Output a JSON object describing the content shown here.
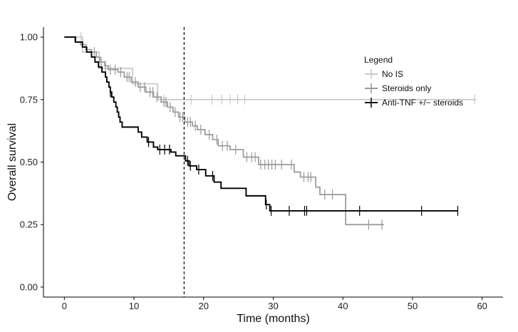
{
  "chart_data": {
    "type": "line",
    "subtype": "kaplan-meier step",
    "xlabel": "Time (months)",
    "ylabel": "Overall survival",
    "xlim": [
      -3,
      63
    ],
    "ylim": [
      -0.04,
      1.04
    ],
    "x_ticks": [
      0,
      10,
      20,
      30,
      40,
      50,
      60
    ],
    "y_ticks": [
      0.0,
      0.25,
      0.5,
      0.75,
      1.0
    ],
    "x_tick_labels": [
      "0",
      "10",
      "20",
      "30",
      "40",
      "50",
      "60"
    ],
    "y_tick_labels": [
      "0.00",
      "0.25",
      "0.50",
      "0.75",
      "1.00"
    ],
    "reference_line_x": 17.2,
    "legend": {
      "title": "Legend",
      "position": "top-right",
      "entries": [
        "No IS",
        "Steroids only",
        "Anti-TNF +/− steroids"
      ]
    },
    "series": [
      {
        "name": "No IS",
        "color": "#c8c8c8",
        "steps": [
          [
            0,
            1.0
          ],
          [
            2.6,
            0.94
          ],
          [
            5.0,
            0.875
          ],
          [
            9.8,
            0.813
          ],
          [
            13.4,
            0.75
          ],
          [
            59.2,
            0.75
          ]
        ],
        "censors": [
          2.4,
          14.3,
          18.2,
          21.2,
          22.6,
          23.8,
          24.9,
          25.9,
          58.9
        ]
      },
      {
        "name": "Steroids only",
        "color": "#999999",
        "steps": [
          [
            0,
            1.0
          ],
          [
            1.5,
            0.98
          ],
          [
            2.3,
            0.97
          ],
          [
            3.1,
            0.95
          ],
          [
            3.9,
            0.94
          ],
          [
            4.6,
            0.92
          ],
          [
            5.1,
            0.9
          ],
          [
            5.8,
            0.885
          ],
          [
            6.3,
            0.87
          ],
          [
            7.7,
            0.86
          ],
          [
            8.6,
            0.84
          ],
          [
            9.6,
            0.82
          ],
          [
            10.6,
            0.8
          ],
          [
            11.7,
            0.78
          ],
          [
            12.8,
            0.76
          ],
          [
            13.9,
            0.74
          ],
          [
            14.8,
            0.72
          ],
          [
            15.6,
            0.7
          ],
          [
            16.4,
            0.68
          ],
          [
            17.3,
            0.66
          ],
          [
            18.4,
            0.645
          ],
          [
            19.1,
            0.63
          ],
          [
            20.2,
            0.61
          ],
          [
            21.3,
            0.59
          ],
          [
            22.1,
            0.565
          ],
          [
            23.8,
            0.55
          ],
          [
            25.7,
            0.52
          ],
          [
            27.9,
            0.49
          ],
          [
            33.0,
            0.46
          ],
          [
            33.9,
            0.44
          ],
          [
            36.1,
            0.4
          ],
          [
            36.7,
            0.37
          ],
          [
            40.4,
            0.25
          ],
          [
            45.9,
            0.25
          ]
        ],
        "censors": [
          4.3,
          5.3,
          5.9,
          6.6,
          7.3,
          8.1,
          9.0,
          9.3,
          10.2,
          10.9,
          11.5,
          12.3,
          12.7,
          13.3,
          14.3,
          14.6,
          15.2,
          15.9,
          16.6,
          17.0,
          17.7,
          18.1,
          18.8,
          19.6,
          20.8,
          21.9,
          22.7,
          23.4,
          24.6,
          26.2,
          26.9,
          27.4,
          28.2,
          28.8,
          29.3,
          29.8,
          30.3,
          31.2,
          32.6,
          34.4,
          35.0,
          35.4,
          37.4,
          38.5,
          43.7,
          45.6
        ]
      },
      {
        "name": "Anti-TNF +/− steroids",
        "color": "#000000",
        "steps": [
          [
            0,
            1.0
          ],
          [
            1.6,
            0.98
          ],
          [
            2.6,
            0.96
          ],
          [
            3.2,
            0.94
          ],
          [
            3.9,
            0.92
          ],
          [
            4.4,
            0.9
          ],
          [
            4.9,
            0.88
          ],
          [
            5.4,
            0.86
          ],
          [
            5.9,
            0.84
          ],
          [
            6.1,
            0.82
          ],
          [
            6.4,
            0.8
          ],
          [
            6.6,
            0.78
          ],
          [
            6.8,
            0.76
          ],
          [
            7.1,
            0.74
          ],
          [
            7.4,
            0.72
          ],
          [
            7.6,
            0.7
          ],
          [
            7.8,
            0.68
          ],
          [
            8.0,
            0.66
          ],
          [
            8.3,
            0.64
          ],
          [
            10.6,
            0.62
          ],
          [
            11.1,
            0.6
          ],
          [
            11.9,
            0.58
          ],
          [
            12.8,
            0.56
          ],
          [
            13.4,
            0.55
          ],
          [
            15.3,
            0.54
          ],
          [
            16.0,
            0.525
          ],
          [
            17.4,
            0.505
          ],
          [
            17.9,
            0.485
          ],
          [
            19.0,
            0.47
          ],
          [
            20.3,
            0.445
          ],
          [
            21.5,
            0.42
          ],
          [
            22.5,
            0.395
          ],
          [
            26.1,
            0.365
          ],
          [
            28.9,
            0.33
          ],
          [
            29.5,
            0.305
          ],
          [
            56.5,
            0.305
          ]
        ],
        "censors": [
          6.6,
          12.1,
          13.7,
          14.4,
          15.1,
          17.7,
          18.1,
          19.3,
          21.3,
          29.0,
          29.7,
          32.3,
          34.5,
          34.8,
          42.4,
          51.3,
          56.5
        ]
      }
    ]
  }
}
